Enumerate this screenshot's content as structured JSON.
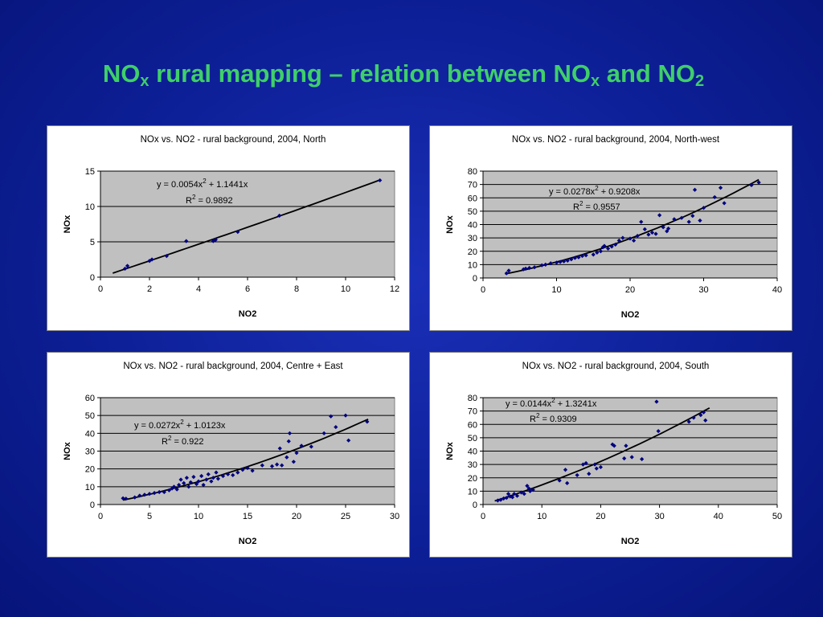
{
  "slide": {
    "title_pre": "NO",
    "title_sub1": "x",
    "title_mid": " rural mapping – relation between NO",
    "title_sub2": "x",
    "title_mid2": " and NO",
    "title_sub3": "2"
  },
  "colors": {
    "title": "#3fcf6a",
    "plot_bg": "#c0c0c0",
    "marker": "#000080",
    "trend": "#000000"
  },
  "chart_data": [
    {
      "type": "scatter",
      "title": "NOx vs. NO2 - rural background, 2004, North",
      "xlabel": "NO2",
      "ylabel": "NOx",
      "xlim": [
        0,
        12
      ],
      "ylim": [
        0,
        15
      ],
      "xticks": [
        0,
        2,
        4,
        6,
        8,
        10,
        12
      ],
      "yticks": [
        0,
        5,
        10,
        15
      ],
      "grid": true,
      "equation": "y = 0.0054x",
      "eq_exp": "2",
      "eq_rest": " + 1.1441x",
      "r2_label": "R",
      "r2_exp": "2",
      "r2_value": " = 0.9892",
      "trend": {
        "a": 0.0054,
        "b": 1.1441,
        "x_range": [
          0.5,
          11.4
        ]
      },
      "points": [
        [
          1.0,
          1.2
        ],
        [
          1.1,
          1.6
        ],
        [
          2.0,
          2.3
        ],
        [
          2.1,
          2.5
        ],
        [
          2.7,
          3.0
        ],
        [
          3.5,
          5.1
        ],
        [
          4.6,
          5.1
        ],
        [
          4.7,
          5.3
        ],
        [
          5.6,
          6.4
        ],
        [
          7.3,
          8.7
        ],
        [
          11.4,
          13.7
        ]
      ]
    },
    {
      "type": "scatter",
      "title": "NOx vs. NO2 - rural background, 2004, North-west",
      "xlabel": "NO2",
      "ylabel": "NOx",
      "xlim": [
        0,
        40
      ],
      "ylim": [
        0,
        80
      ],
      "xticks": [
        0,
        10,
        20,
        30,
        40
      ],
      "yticks": [
        0,
        10,
        20,
        30,
        40,
        50,
        60,
        70,
        80
      ],
      "grid": true,
      "equation": "y = 0.0278x",
      "eq_exp": "2",
      "eq_rest": " + 0.9208x",
      "r2_label": "R",
      "r2_exp": "2",
      "r2_value": " = 0.9557",
      "trend": {
        "a": 0.0278,
        "b": 0.9208,
        "x_range": [
          3,
          37.5
        ]
      },
      "points": [
        [
          3.2,
          3.5
        ],
        [
          3.5,
          5.5
        ],
        [
          5.5,
          6.5
        ],
        [
          5.8,
          7.0
        ],
        [
          6.3,
          7.5
        ],
        [
          7.0,
          8.0
        ],
        [
          8.0,
          9.5
        ],
        [
          8.5,
          10.0
        ],
        [
          9.2,
          11.0
        ],
        [
          10.0,
          11.5
        ],
        [
          10.5,
          12.0
        ],
        [
          11.0,
          12.5
        ],
        [
          11.5,
          13.0
        ],
        [
          12.0,
          14.0
        ],
        [
          12.5,
          15.0
        ],
        [
          13.0,
          15.5
        ],
        [
          13.5,
          16.5
        ],
        [
          14.0,
          17.0
        ],
        [
          15.0,
          17.5
        ],
        [
          15.5,
          19.0
        ],
        [
          16.0,
          20.0
        ],
        [
          16.3,
          23.0
        ],
        [
          16.5,
          24.0
        ],
        [
          17.0,
          22.0
        ],
        [
          17.5,
          23.5
        ],
        [
          18.0,
          25.0
        ],
        [
          18.5,
          28.0
        ],
        [
          19.0,
          30.0
        ],
        [
          20.0,
          29.5
        ],
        [
          20.5,
          28.0
        ],
        [
          21.0,
          31.5
        ],
        [
          21.5,
          42.0
        ],
        [
          22.0,
          36.5
        ],
        [
          22.5,
          32.5
        ],
        [
          23.0,
          34.0
        ],
        [
          23.5,
          33.0
        ],
        [
          24.0,
          47.0
        ],
        [
          24.5,
          38.0
        ],
        [
          25.0,
          35.0
        ],
        [
          25.2,
          37.0
        ],
        [
          26.0,
          44.0
        ],
        [
          27.0,
          45.0
        ],
        [
          28.0,
          42.0
        ],
        [
          28.5,
          46.5
        ],
        [
          28.8,
          66.0
        ],
        [
          29.5,
          43.0
        ],
        [
          30.0,
          52.5
        ],
        [
          31.5,
          60.5
        ],
        [
          32.3,
          67.5
        ],
        [
          32.8,
          56.0
        ],
        [
          36.5,
          69.5
        ],
        [
          37.5,
          71.5
        ]
      ]
    },
    {
      "type": "scatter",
      "title": "NOx vs. NO2 - rural background, 2004, Centre + East",
      "xlabel": "NO2",
      "ylabel": "NOx",
      "xlim": [
        0,
        30
      ],
      "ylim": [
        0,
        60
      ],
      "xticks": [
        0,
        5,
        10,
        15,
        20,
        25,
        30
      ],
      "yticks": [
        0,
        10,
        20,
        30,
        40,
        50,
        60
      ],
      "grid": true,
      "equation": "y = 0.0272x",
      "eq_exp": "2",
      "eq_rest": " + 1.0123x",
      "r2_label": "R",
      "r2_exp": "2",
      "r2_value": " = 0.922",
      "trend": {
        "a": 0.0272,
        "b": 1.0123,
        "x_range": [
          2.3,
          27.3
        ]
      },
      "points": [
        [
          2.3,
          3.5
        ],
        [
          2.6,
          3.3
        ],
        [
          3.5,
          4.0
        ],
        [
          4.0,
          5.0
        ],
        [
          4.5,
          5.5
        ],
        [
          5.0,
          6.0
        ],
        [
          5.5,
          6.5
        ],
        [
          6.0,
          7.0
        ],
        [
          6.5,
          7.0
        ],
        [
          7.0,
          8.0
        ],
        [
          7.3,
          9.0
        ],
        [
          7.5,
          10.0
        ],
        [
          7.8,
          8.5
        ],
        [
          8.0,
          11.0
        ],
        [
          8.2,
          14.0
        ],
        [
          8.5,
          12.0
        ],
        [
          8.8,
          15.0
        ],
        [
          9.0,
          10.0
        ],
        [
          9.2,
          12.5
        ],
        [
          9.5,
          15.5
        ],
        [
          9.8,
          11.5
        ],
        [
          10.0,
          13.0
        ],
        [
          10.3,
          16.0
        ],
        [
          10.5,
          11.0
        ],
        [
          10.8,
          14.0
        ],
        [
          11.0,
          17.0
        ],
        [
          11.3,
          13.0
        ],
        [
          11.5,
          15.0
        ],
        [
          11.8,
          18.0
        ],
        [
          12.0,
          14.5
        ],
        [
          12.5,
          16.0
        ],
        [
          13.0,
          17.0
        ],
        [
          13.5,
          16.5
        ],
        [
          14.0,
          18.0
        ],
        [
          14.5,
          19.5
        ],
        [
          15.0,
          20.5
        ],
        [
          15.5,
          19.0
        ],
        [
          16.5,
          22.0
        ],
        [
          17.5,
          21.5
        ],
        [
          18.0,
          22.5
        ],
        [
          18.5,
          22.0
        ],
        [
          18.3,
          31.5
        ],
        [
          19.0,
          26.5
        ],
        [
          19.3,
          40.0
        ],
        [
          19.2,
          35.5
        ],
        [
          19.7,
          24.0
        ],
        [
          20.0,
          29.0
        ],
        [
          20.5,
          33.0
        ],
        [
          21.5,
          32.5
        ],
        [
          22.8,
          40.0
        ],
        [
          23.5,
          49.5
        ],
        [
          24.0,
          43.5
        ],
        [
          25.0,
          50.0
        ],
        [
          25.3,
          36.0
        ],
        [
          27.2,
          46.5
        ]
      ]
    },
    {
      "type": "scatter",
      "title": "NOx vs. NO2 - rural background, 2004, South",
      "xlabel": "NO2",
      "ylabel": "NOx",
      "xlim": [
        0,
        50
      ],
      "ylim": [
        0,
        80
      ],
      "xticks": [
        0,
        10,
        20,
        30,
        40,
        50
      ],
      "yticks": [
        0,
        10,
        20,
        30,
        40,
        50,
        60,
        70,
        80
      ],
      "grid": true,
      "equation": "y = 0.0144x",
      "eq_exp": "2",
      "eq_rest": " + 1.3241x",
      "r2_label": "R",
      "r2_exp": "2",
      "r2_value": " = 0.9309",
      "trend": {
        "a": 0.0144,
        "b": 1.3241,
        "x_range": [
          2,
          38.5
        ]
      },
      "points": [
        [
          2.5,
          3.0
        ],
        [
          3.0,
          3.5
        ],
        [
          3.5,
          4.5
        ],
        [
          4.0,
          5.0
        ],
        [
          4.3,
          8.0
        ],
        [
          4.6,
          6.0
        ],
        [
          5.0,
          5.5
        ],
        [
          5.3,
          8.0
        ],
        [
          5.8,
          6.5
        ],
        [
          6.5,
          9.0
        ],
        [
          7.0,
          8.0
        ],
        [
          7.5,
          14.0
        ],
        [
          7.8,
          12.0
        ],
        [
          8.0,
          10.0
        ],
        [
          8.5,
          11.0
        ],
        [
          13.0,
          18.0
        ],
        [
          14.0,
          26.0
        ],
        [
          14.3,
          16.0
        ],
        [
          16.0,
          22.0
        ],
        [
          17.0,
          30.0
        ],
        [
          17.5,
          31.0
        ],
        [
          18.0,
          23.0
        ],
        [
          19.0,
          30.0
        ],
        [
          19.3,
          27.0
        ],
        [
          20.0,
          28.0
        ],
        [
          22.0,
          45.0
        ],
        [
          22.3,
          44.0
        ],
        [
          24.0,
          34.5
        ],
        [
          24.3,
          44.0
        ],
        [
          25.3,
          35.5
        ],
        [
          27.0,
          34.0
        ],
        [
          29.5,
          77.0
        ],
        [
          29.8,
          55.0
        ],
        [
          35.0,
          62.0
        ],
        [
          35.8,
          65.0
        ],
        [
          37.0,
          67.0
        ],
        [
          37.5,
          69.0
        ],
        [
          37.8,
          63.0
        ]
      ]
    }
  ]
}
